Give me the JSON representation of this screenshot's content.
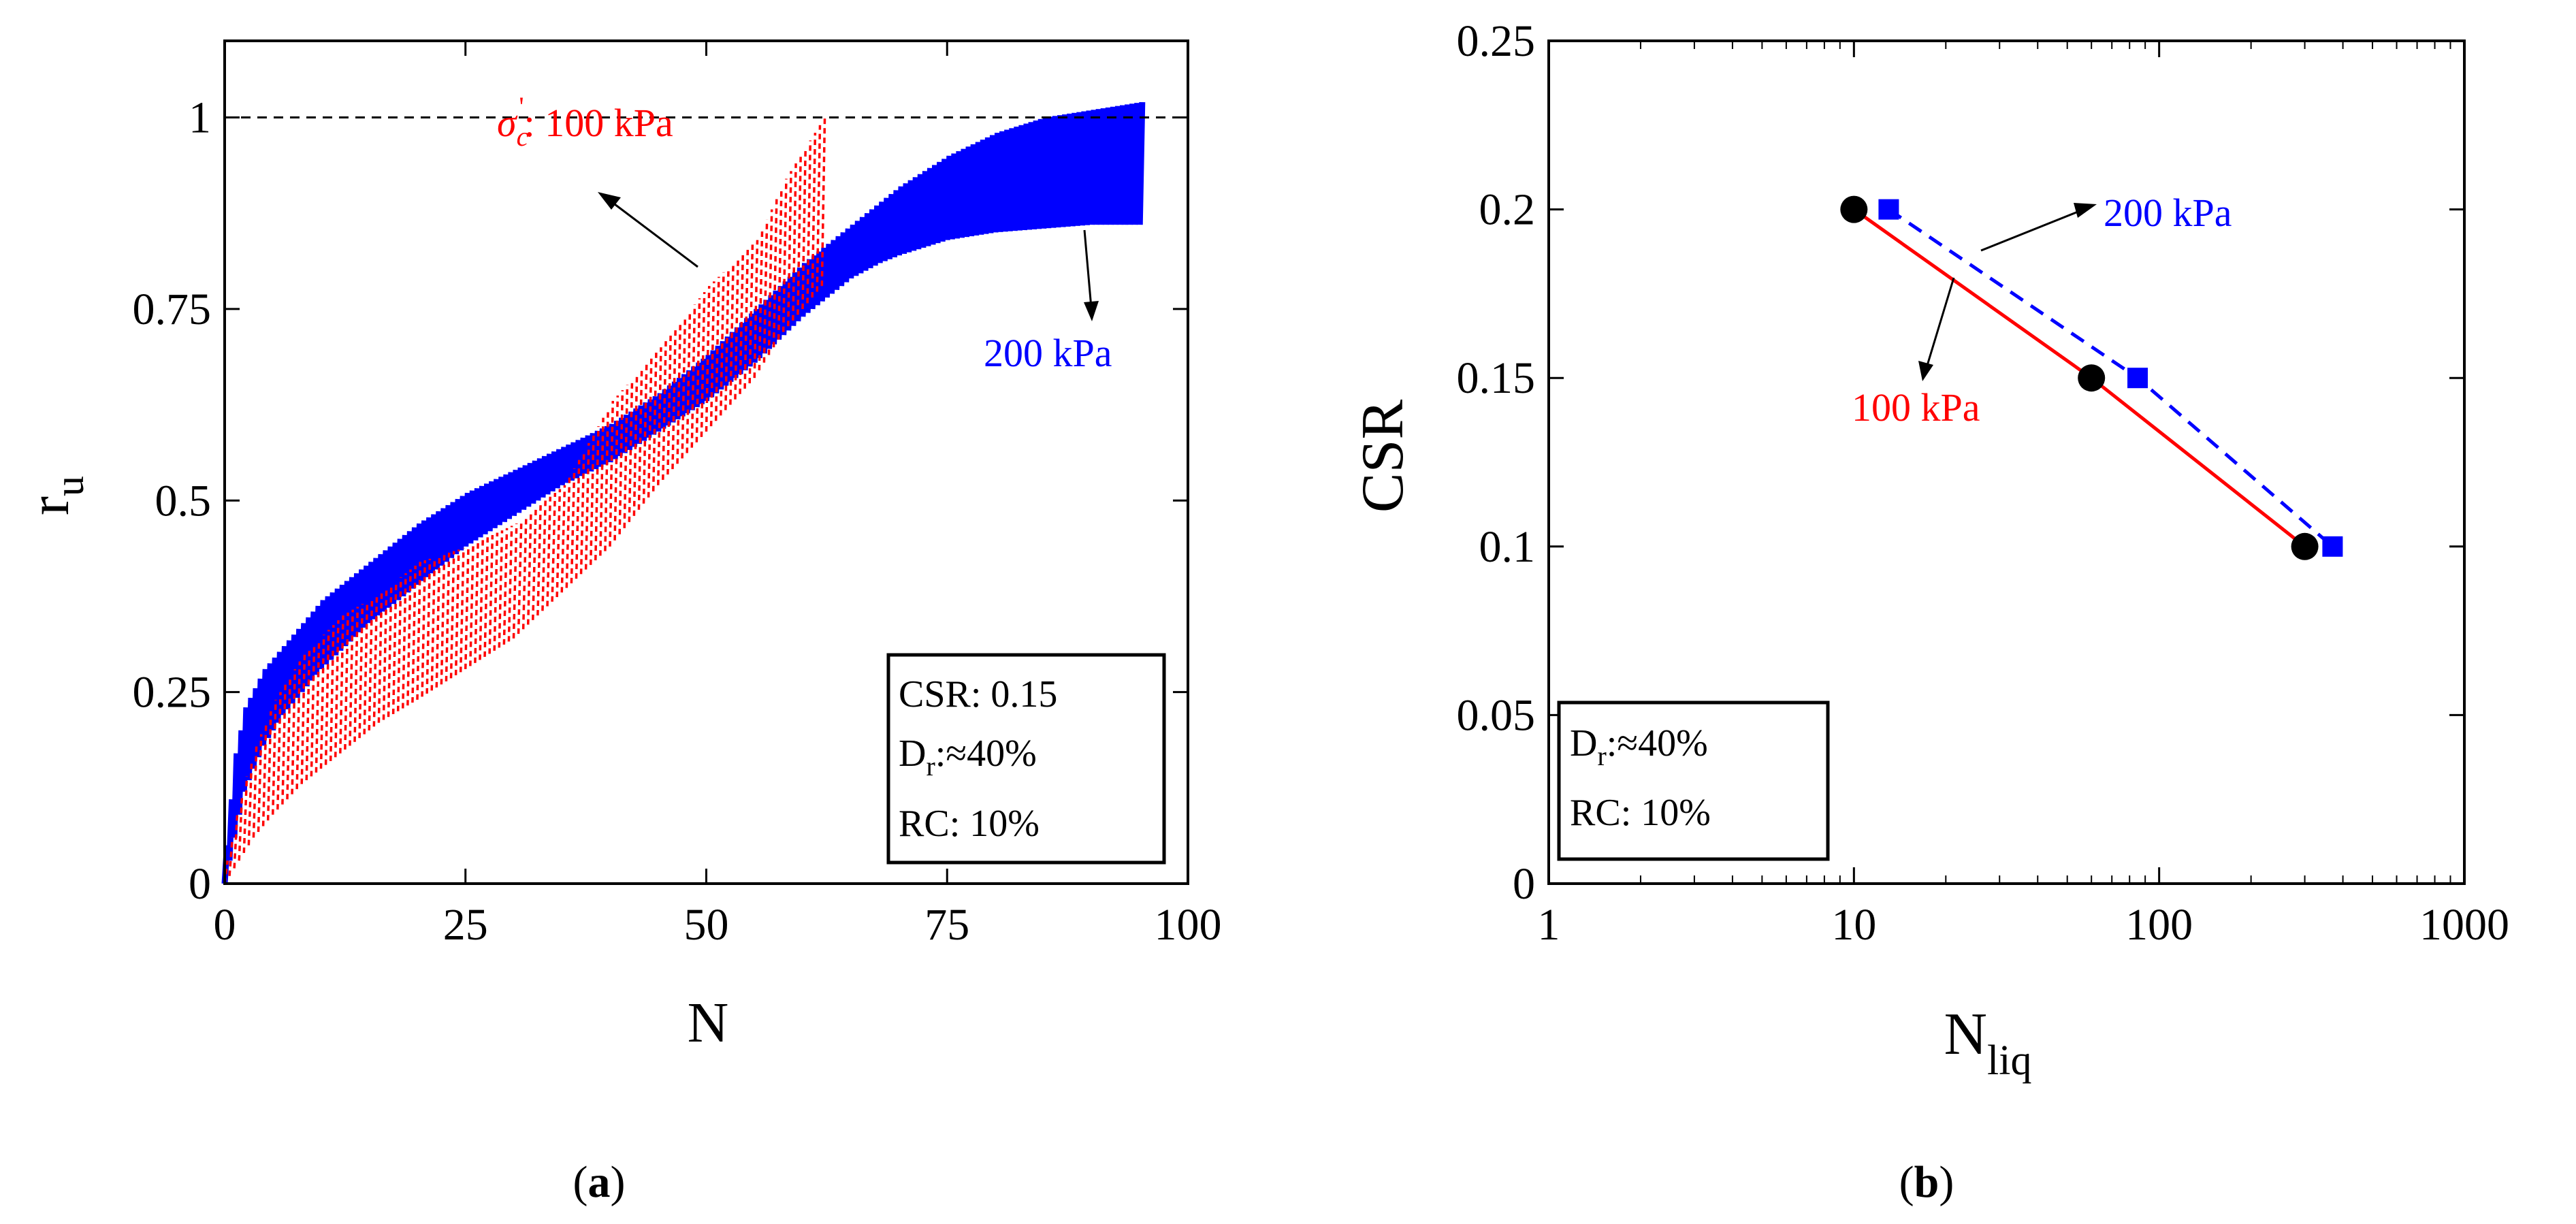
{
  "colors": {
    "series_100": "#ff0000",
    "series_200": "#0000ff",
    "axis": "#000000",
    "marker_100": "#000000",
    "marker_200": "#0000ff"
  },
  "chart_data": [
    {
      "panel_label": "a",
      "type": "line",
      "xlabel": "N",
      "ylabel": "r",
      "ylabel_sub": "u",
      "xlim": [
        0,
        100
      ],
      "ylim": [
        0,
        1.1
      ],
      "x_ticks": [
        0,
        25,
        50,
        75,
        100
      ],
      "x_tick_labels": [
        "0",
        "25",
        "50",
        "75",
        "100"
      ],
      "y_ticks": [
        0,
        0.25,
        0.5,
        0.75,
        1
      ],
      "y_tick_labels": [
        "0",
        "0.25",
        "0.5",
        "0.75",
        "1"
      ],
      "reference_line": {
        "y": 1,
        "style": "dashed"
      },
      "series": [
        {
          "name": "100 kPa",
          "label_prefix": "σ",
          "label_sub": "c",
          "label_sup": "'",
          "label_text": ": 100 kPa",
          "color": "#ff0000",
          "style": "dotted band",
          "n_end": 62,
          "x": [
            0,
            1,
            2,
            3,
            5,
            8,
            12,
            16,
            20,
            25,
            30,
            35,
            40,
            45,
            50,
            55,
            58,
            60,
            62
          ],
          "y_max": [
            0.03,
            0.09,
            0.14,
            0.18,
            0.24,
            0.3,
            0.35,
            0.38,
            0.42,
            0.44,
            0.47,
            0.52,
            0.63,
            0.7,
            0.78,
            0.84,
            0.92,
            0.96,
            1.0
          ],
          "y_min": [
            0,
            0.02,
            0.04,
            0.06,
            0.09,
            0.13,
            0.17,
            0.21,
            0.24,
            0.28,
            0.32,
            0.38,
            0.44,
            0.52,
            0.59,
            0.66,
            0.72,
            0.75,
            0.78
          ]
        },
        {
          "name": "200 kPa",
          "label_text": "200 kPa",
          "color": "#0000ff",
          "style": "solid band",
          "n_end": 95,
          "x": [
            0,
            1,
            2,
            4,
            6,
            10,
            15,
            20,
            25,
            30,
            35,
            40,
            45,
            50,
            55,
            60,
            65,
            68,
            70,
            75,
            80,
            85,
            90,
            95
          ],
          "y_max": [
            0.05,
            0.17,
            0.23,
            0.28,
            0.31,
            0.37,
            0.42,
            0.47,
            0.51,
            0.54,
            0.57,
            0.6,
            0.64,
            0.69,
            0.75,
            0.81,
            0.86,
            0.89,
            0.91,
            0.95,
            0.98,
            1.0,
            1.01,
            1.02
          ],
          "y_min": [
            0,
            0.06,
            0.12,
            0.18,
            0.22,
            0.28,
            0.34,
            0.39,
            0.44,
            0.48,
            0.52,
            0.55,
            0.59,
            0.63,
            0.68,
            0.74,
            0.79,
            0.81,
            0.82,
            0.84,
            0.85,
            0.855,
            0.86,
            0.86
          ]
        }
      ],
      "annotation_box": [
        "CSR: 0.15",
        "D",
        "r",
        ":≈40%",
        "RC: 10%"
      ],
      "annotation_lines": [
        "CSR: 0.15",
        "RC: 10%"
      ],
      "annotation_dr": {
        "main": "D",
        "sub": "r",
        "rest": ":≈40%"
      }
    },
    {
      "panel_label": "b",
      "type": "line",
      "xlabel": "N",
      "xlabel_sub": "liq",
      "ylabel": "CSR",
      "x_scale": "log",
      "xlim": [
        1,
        1000
      ],
      "ylim": [
        0,
        0.25
      ],
      "x_ticks": [
        1,
        10,
        100,
        1000
      ],
      "x_tick_labels": [
        "1",
        "10",
        "100",
        "1000"
      ],
      "y_ticks": [
        0,
        0.05,
        0.1,
        0.15,
        0.2,
        0.25
      ],
      "y_tick_labels": [
        "0",
        "0.05",
        "0.1",
        "0.15",
        "0.2",
        "0.25"
      ],
      "series": [
        {
          "name": "100 kPa",
          "color": "#ff0000",
          "line": "solid",
          "marker": "circle",
          "x": [
            10,
            60,
            300
          ],
          "y": [
            0.2,
            0.15,
            0.1
          ]
        },
        {
          "name": "200 kPa",
          "color": "#0000ff",
          "line": "dashed",
          "marker": "square",
          "x": [
            13,
            85,
            370
          ],
          "y": [
            0.2,
            0.15,
            0.1
          ]
        }
      ],
      "annotation_dr": {
        "main": "D",
        "sub": "r",
        "rest": ":≈40%"
      },
      "annotation_lines": [
        "RC: 10%"
      ]
    }
  ]
}
